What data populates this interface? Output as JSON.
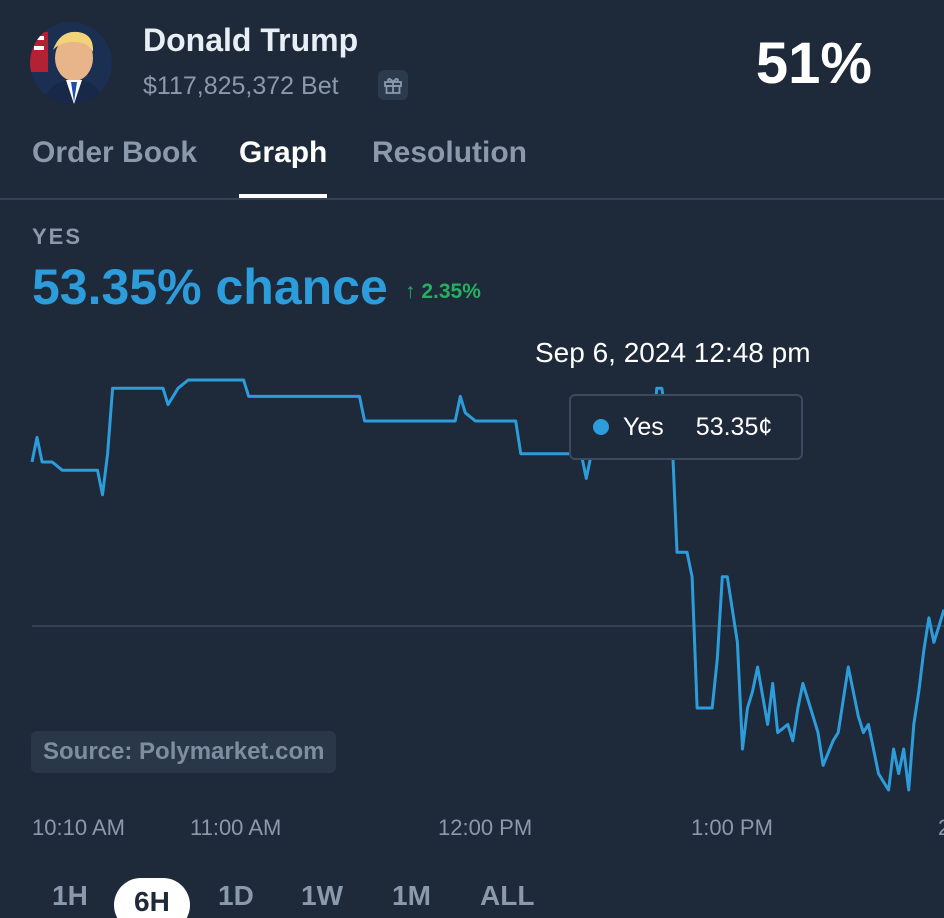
{
  "market": {
    "name": "Donald Trump",
    "bet": "$117,825,372 Bet",
    "percent": "51%"
  },
  "tabs": [
    "Order Book",
    "Graph",
    "Resolution"
  ],
  "outcome": {
    "label": "YES",
    "chance": "53.35% chance",
    "change": "2.35%"
  },
  "tooltip": {
    "time": "Sep 6, 2024 12:48 pm",
    "series": "Yes",
    "value": "53.35¢"
  },
  "source": "Source: Polymarket.com",
  "ranges": [
    "1H",
    "6H",
    "1D",
    "1W",
    "1M",
    "ALL"
  ],
  "active_range": "6H",
  "chart_data": {
    "type": "line",
    "xlabel": "",
    "ylabel": "",
    "x_ticks": [
      "10:10 AM",
      "11:00 AM",
      "12:00 PM",
      "1:00 PM",
      "2"
    ],
    "grid": "single horizontal line",
    "series": [
      {
        "color": "#2d9cdb",
        "x": [
          0,
          1,
          2,
          4,
          6,
          13,
          14,
          15,
          16,
          20,
          26,
          27,
          28,
          29,
          31,
          42,
          43,
          44,
          65,
          66,
          72,
          84,
          85,
          86,
          88,
          96,
          97,
          98,
          109,
          110,
          111,
          112,
          115,
          123,
          124,
          125,
          126,
          127,
          128,
          130,
          131,
          132,
          135,
          136,
          137,
          138,
          140,
          141,
          142,
          143,
          144,
          146,
          147,
          148,
          150,
          151,
          152,
          153,
          155,
          156,
          157,
          159,
          160,
          162,
          164,
          165,
          166,
          167,
          168,
          169,
          170,
          171,
          172,
          173,
          174,
          175,
          176,
          177,
          178,
          179,
          180,
          181
        ],
        "values": [
          53,
          53.3,
          53,
          53,
          52.9,
          52.9,
          52.6,
          53.1,
          53.9,
          53.9,
          53.9,
          53.7,
          53.8,
          53.9,
          54,
          54,
          53.8,
          53.8,
          53.8,
          53.5,
          53.5,
          53.5,
          53.8,
          53.6,
          53.5,
          53.5,
          53.1,
          53.1,
          53.1,
          52.8,
          53.1,
          53.1,
          53.2,
          53.2,
          53.9,
          53.9,
          53.5,
          53.35,
          51.9,
          51.9,
          51.6,
          50,
          50,
          50.6,
          51.6,
          51.6,
          50.8,
          49.5,
          50,
          50.2,
          50.5,
          49.8,
          50.3,
          49.7,
          49.8,
          49.6,
          50,
          50.3,
          49.9,
          49.7,
          49.3,
          49.6,
          49.7,
          50.5,
          49.9,
          49.7,
          49.8,
          49.5,
          49.2,
          49.1,
          49.0,
          49.5,
          49.2,
          49.5,
          49.0,
          49.8,
          50.2,
          50.7,
          51.1,
          50.8,
          51.0,
          51.2
        ]
      }
    ],
    "highlight": {
      "x": 127,
      "value": 53.35
    }
  }
}
